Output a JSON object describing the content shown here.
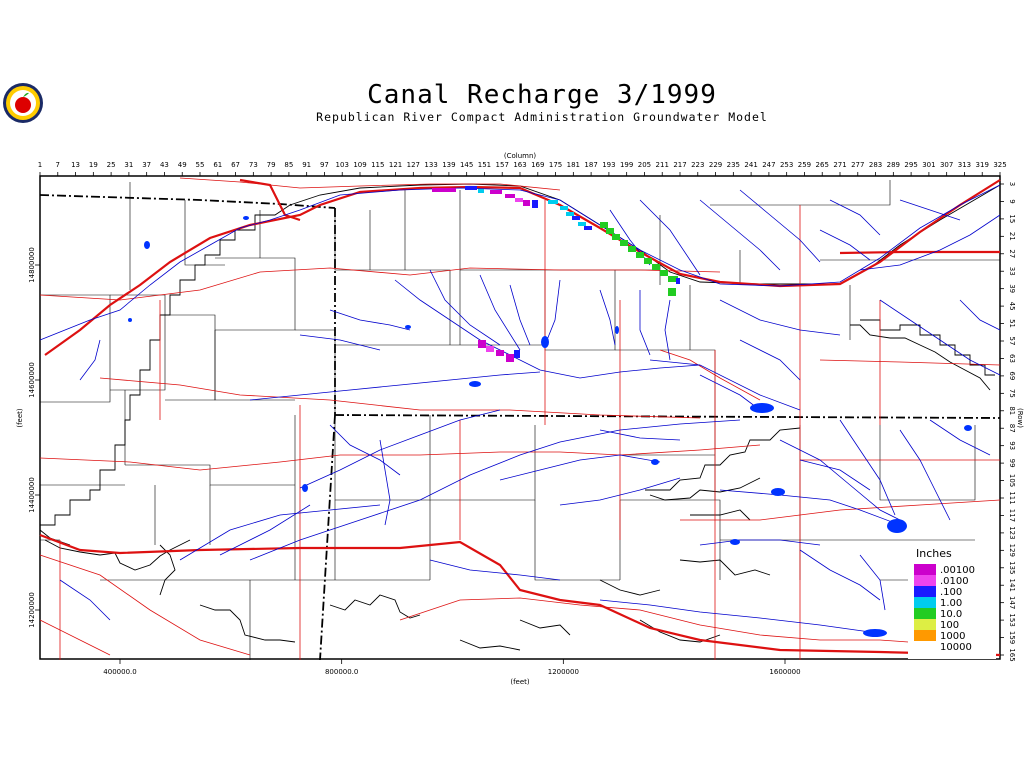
{
  "title": "Canal Recharge 3/1999",
  "subtitle": "Republican River Compact Administration Groundwater Model",
  "top_axis": {
    "label": "(Column)",
    "ticks": [
      "1",
      "7",
      "13",
      "19",
      "25",
      "31",
      "37",
      "43",
      "49",
      "55",
      "61",
      "67",
      "73",
      "79",
      "85",
      "91",
      "97",
      "103",
      "109",
      "115",
      "121",
      "127",
      "133",
      "139",
      "145",
      "151",
      "157",
      "163",
      "169",
      "175",
      "181",
      "187",
      "193",
      "199",
      "205",
      "211",
      "217",
      "223",
      "229",
      "235",
      "241",
      "247",
      "253",
      "259",
      "265",
      "271",
      "277",
      "283",
      "289",
      "295",
      "301",
      "307",
      "313",
      "319",
      "325"
    ]
  },
  "right_axis": {
    "label": "(Row)",
    "ticks": [
      "3",
      "9",
      "15",
      "21",
      "27",
      "33",
      "39",
      "45",
      "51",
      "57",
      "63",
      "69",
      "75",
      "81",
      "87",
      "93",
      "99",
      "105",
      "111",
      "117",
      "123",
      "129",
      "135",
      "141",
      "147",
      "153",
      "159",
      "165"
    ]
  },
  "bottom_axis": {
    "label": "(feet)",
    "ticks": [
      {
        "text": "400000.0",
        "value": 400000
      },
      {
        "text": "800000.0",
        "value": 800000
      },
      {
        "text": "1200000",
        "value": 1200000
      },
      {
        "text": "1600000",
        "value": 1600000
      }
    ]
  },
  "left_axis": {
    "label": "(feet)",
    "ticks": [
      {
        "text": "14800000",
        "value": 14800000
      },
      {
        "text": "14600000",
        "value": 14600000
      },
      {
        "text": "14400000",
        "value": 14400000
      },
      {
        "text": "14200000",
        "value": 14200000
      }
    ]
  },
  "legend": {
    "title": "Inches",
    "items": [
      {
        "label": ".00100",
        "color": "#cc00cc"
      },
      {
        "label": ".0100",
        "color": "#ee44ee"
      },
      {
        "label": ".100",
        "color": "#1a1aff"
      },
      {
        "label": "1.00",
        "color": "#00ccee"
      },
      {
        "label": "10.0",
        "color": "#22cc22"
      },
      {
        "label": "100",
        "color": "#ddee44"
      },
      {
        "label": "1000",
        "color": "#ff9900"
      },
      {
        "label": "10000",
        "color": "#ffffff"
      }
    ]
  },
  "colors": {
    "rivers": "#0000cc",
    "roads": "#dd1111",
    "boundaries": "#000000",
    "lakes": "#0033ff"
  },
  "logo": "apple-seal-logo"
}
